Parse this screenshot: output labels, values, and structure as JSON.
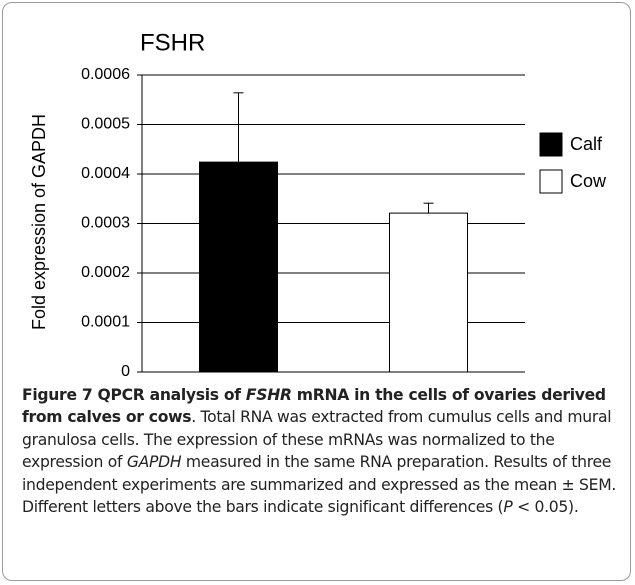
{
  "chart_data": {
    "type": "bar",
    "title": "FSHR",
    "y_label": "Fold expression of GAPDH",
    "categories": [
      null
    ],
    "series": [
      {
        "name": "Calf",
        "color": "#000000",
        "values": [
          0.000424
        ],
        "errors": [
          0.00014
        ]
      },
      {
        "name": "Cow",
        "color": "#ffffff",
        "values": [
          0.000321
        ],
        "errors": [
          2e-05
        ]
      }
    ],
    "ylim": [
      0,
      0.0006
    ],
    "yticks": [
      0,
      0.0001,
      0.0002,
      0.0003,
      0.0004,
      0.0005,
      0.0006
    ],
    "grid": true,
    "legend": "right"
  },
  "caption": {
    "parts": [
      "Figure 7 QPCR analysis of ",
      "FSHR",
      " mRNA in the cells of ovaries derived from calves or cows",
      ". Total RNA was extracted from cumulus cells and mural granulosa cells. The expression of these mRNAs was normalized to the expression of ",
      "GAPDH",
      " measured in the same RNA preparation. Results of three independent experiments are summarized and expressed as the mean ± SEM. Different letters above the bars indicate significant differences (",
      "P",
      " < 0.05)."
    ]
  }
}
